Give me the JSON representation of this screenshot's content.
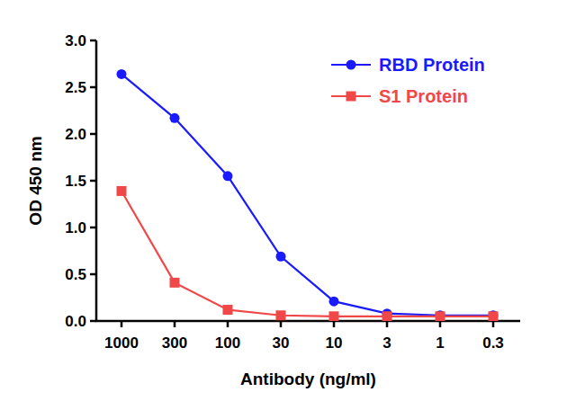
{
  "chart_data": {
    "type": "line",
    "x_label": "Antibody (ng/ml)",
    "y_label": "OD 450 nm",
    "categories": [
      "1000",
      "300",
      "100",
      "30",
      "10",
      "3",
      "1",
      "0.3"
    ],
    "series": [
      {
        "name": "RBD Protein",
        "color": "#1a1aff",
        "marker": "circle",
        "line_style": "solid",
        "values": [
          2.64,
          2.17,
          1.55,
          0.69,
          0.21,
          0.08,
          0.06,
          0.06
        ]
      },
      {
        "name": "S1 Protein",
        "color": "#f04848",
        "marker": "square",
        "line_style": "solid",
        "values": [
          1.39,
          0.41,
          0.12,
          0.06,
          0.05,
          0.05,
          0.05,
          0.05
        ]
      }
    ],
    "ylim": [
      0,
      3
    ],
    "yticks": [
      {
        "value": 0,
        "label": "0.0"
      },
      0.5,
      {
        "value": 1,
        "label": "1.0"
      },
      1.5,
      {
        "value": 2,
        "label": "2.0"
      },
      2.5,
      {
        "value": 3,
        "label": "3.0"
      }
    ],
    "grid": false,
    "legend": "upper right"
  }
}
